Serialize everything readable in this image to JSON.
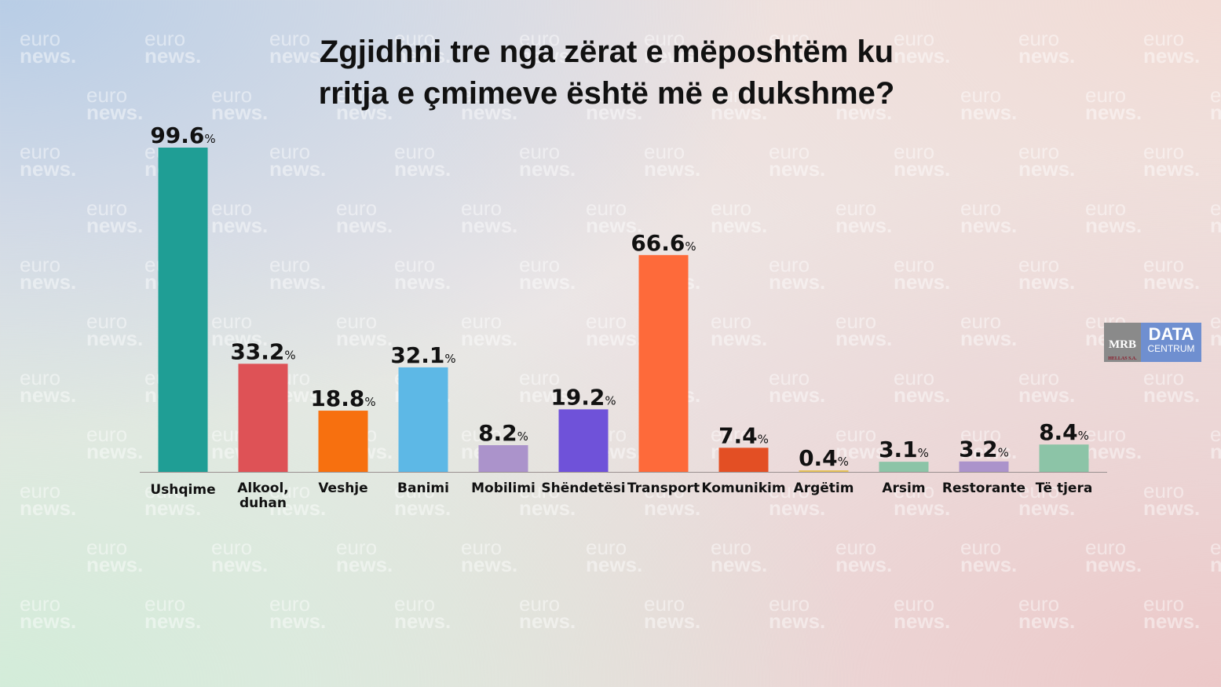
{
  "watermark": {
    "line1": "euro",
    "line2": "news."
  },
  "logo": {
    "mrb": "MRB",
    "hellas": "HELLAS S.A.",
    "data": "DATA",
    "centrum": "CENTRUM"
  },
  "chart_data": {
    "type": "bar",
    "title_line1": "Zgjidhni tre nga zërat e mëposhtëm ku",
    "title_line2": "rritja e çmimeve është më e dukshme?",
    "categories": [
      "Ushqime",
      "Alkool,\nduhan",
      "Veshje",
      "Banimi",
      "Mobilimi",
      "Shëndetësi",
      "Transport",
      "Komunikim",
      "Argëtim",
      "Arsim",
      "Restorante",
      "Të tjera"
    ],
    "values": [
      99.6,
      33.2,
      18.8,
      32.1,
      8.2,
      19.2,
      66.6,
      7.4,
      0.4,
      3.1,
      3.2,
      8.4
    ],
    "labels": [
      "99.6",
      "33.2",
      "18.8",
      "32.1",
      "8.2",
      "19.2",
      "66.6",
      "7.4",
      "0.4",
      "3.1",
      "3.2",
      "8.4"
    ],
    "unit": "%",
    "colors": [
      "#1f9e95",
      "#de5256",
      "#f7700f",
      "#5db8e6",
      "#ab93cb",
      "#6f52d9",
      "#fe6a3a",
      "#e34f24",
      "#e6c25a",
      "#8cc4a7",
      "#ab93cb",
      "#8cc4a7"
    ],
    "ylim": [
      0,
      100
    ],
    "xlabel": "",
    "ylabel": "",
    "grid": false,
    "legend": "none"
  }
}
